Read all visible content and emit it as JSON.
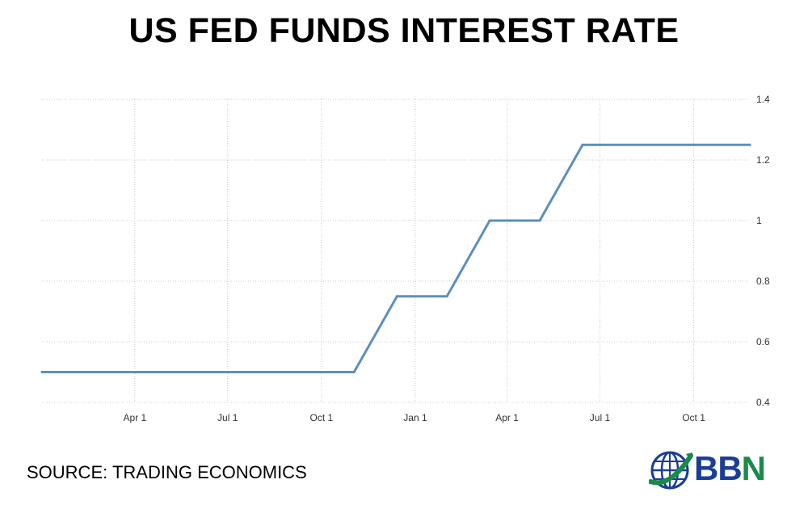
{
  "chart_data": {
    "type": "line",
    "title": "US FED FUNDS INTEREST RATE",
    "xlabel": "",
    "ylabel": "",
    "x_start": "2016-01-01",
    "x_end": "2017-11-25",
    "x_ticks": [
      {
        "date": "2016-04-01",
        "label": "Apr 1"
      },
      {
        "date": "2016-07-01",
        "label": "Jul 1"
      },
      {
        "date": "2016-10-01",
        "label": "Oct 1"
      },
      {
        "date": "2017-01-01",
        "label": "Jan 1"
      },
      {
        "date": "2017-04-01",
        "label": "Apr 1"
      },
      {
        "date": "2017-07-01",
        "label": "Jul 1"
      },
      {
        "date": "2017-10-01",
        "label": "Oct 1"
      }
    ],
    "y_ticks": [
      0.4,
      0.6,
      0.8,
      1,
      1.2,
      1.4
    ],
    "ylim": [
      0.4,
      1.4
    ],
    "grid": true,
    "series": [
      {
        "color": "#5b8fbe",
        "points": [
          {
            "x": "2016-01-01",
            "y": 0.5
          },
          {
            "x": "2016-11-02",
            "y": 0.5
          },
          {
            "x": "2016-12-14",
            "y": 0.75
          },
          {
            "x": "2017-02-01",
            "y": 0.75
          },
          {
            "x": "2017-03-15",
            "y": 1.0
          },
          {
            "x": "2017-05-03",
            "y": 1.0
          },
          {
            "x": "2017-06-14",
            "y": 1.25
          },
          {
            "x": "2017-11-25",
            "y": 1.25
          }
        ]
      }
    ]
  },
  "footer": {
    "source_text": "SOURCE: TRADING ECONOMICS"
  },
  "logo": {
    "text_b": "BB",
    "text_n": "N",
    "icon": "globe-icon",
    "color_blue": "#1a3e98",
    "color_green": "#1a8a4a"
  }
}
